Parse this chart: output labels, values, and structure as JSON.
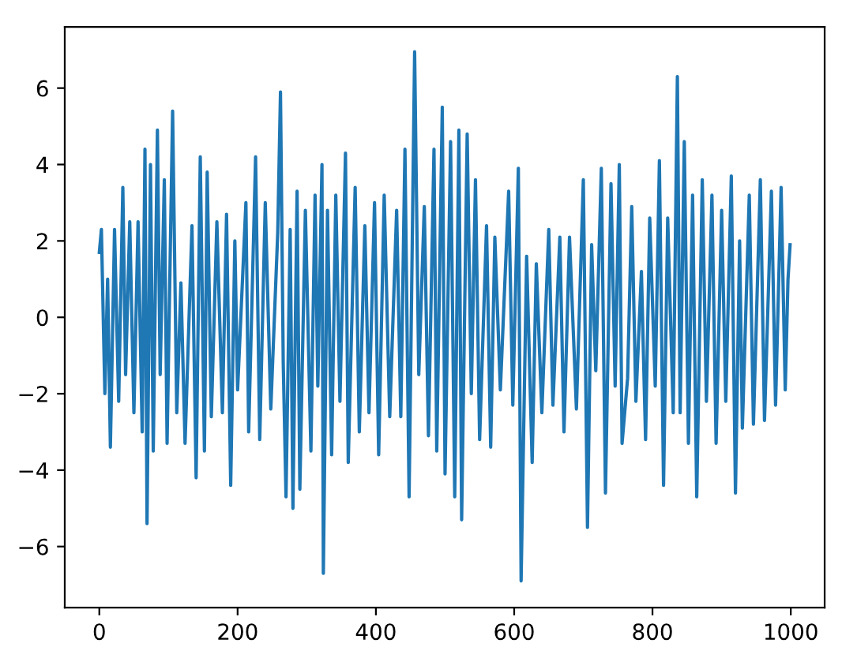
{
  "chart_data": {
    "type": "line",
    "xlim": [
      -50,
      1049
    ],
    "ylim": [
      -7.6,
      7.6
    ],
    "xticks": [
      0,
      200,
      400,
      600,
      800,
      1000
    ],
    "yticks": [
      {
        "value": -6,
        "label": "−6"
      },
      {
        "value": -4,
        "label": "−4"
      },
      {
        "value": -2,
        "label": "−2"
      },
      0,
      2,
      4,
      6
    ],
    "grid": false,
    "marker": "none",
    "line_style": "solid",
    "series": [
      {
        "color": "#1f77b4",
        "x": [
          0,
          3,
          8,
          12,
          16,
          22,
          28,
          34,
          38,
          44,
          50,
          56,
          62,
          66,
          69,
          74,
          78,
          84,
          88,
          94,
          98,
          106,
          112,
          118,
          124,
          134,
          140,
          146,
          152,
          156,
          162,
          170,
          178,
          184,
          190,
          196,
          200,
          212,
          216,
          226,
          232,
          240,
          248,
          258,
          262,
          266,
          270,
          276,
          280,
          286,
          290,
          298,
          306,
          312,
          316,
          322,
          324,
          330,
          336,
          342,
          348,
          356,
          360,
          370,
          376,
          384,
          390,
          398,
          404,
          412,
          420,
          430,
          436,
          442,
          448,
          456,
          462,
          470,
          476,
          484,
          488,
          496,
          500,
          508,
          514,
          520,
          524,
          532,
          538,
          544,
          550,
          560,
          566,
          572,
          580,
          592,
          598,
          606,
          610,
          618,
          626,
          632,
          640,
          650,
          656,
          666,
          672,
          680,
          690,
          700,
          706,
          712,
          718,
          726,
          732,
          740,
          746,
          752,
          756,
          764,
          770,
          776,
          784,
          790,
          796,
          804,
          810,
          816,
          822,
          830,
          836,
          840,
          846,
          852,
          858,
          864,
          872,
          878,
          886,
          892,
          900,
          906,
          914,
          920,
          926,
          930,
          940,
          946,
          956,
          962,
          972,
          978,
          986,
          992,
          996,
          999
        ],
        "values": [
          1.7,
          2.3,
          -2.0,
          1.0,
          -3.4,
          2.3,
          -2.2,
          3.4,
          -1.5,
          2.5,
          -2.5,
          2.5,
          -3.0,
          4.4,
          -5.4,
          4.0,
          -3.5,
          4.9,
          -1.5,
          3.6,
          -3.3,
          5.4,
          -2.5,
          0.9,
          -3.3,
          2.4,
          -4.2,
          4.2,
          -3.5,
          3.8,
          -2.6,
          2.5,
          -2.5,
          2.7,
          -4.4,
          2.0,
          -1.9,
          3.0,
          -3.0,
          4.2,
          -3.2,
          3.0,
          -2.4,
          2.2,
          5.9,
          -1.2,
          -4.7,
          2.3,
          -5.0,
          3.3,
          -4.5,
          2.8,
          -3.5,
          3.2,
          -1.8,
          4.0,
          -6.7,
          2.8,
          -3.6,
          3.2,
          -2.2,
          4.3,
          -3.8,
          3.4,
          -3.0,
          2.4,
          -2.5,
          3.0,
          -3.6,
          3.2,
          -2.6,
          2.8,
          -2.6,
          4.4,
          -4.7,
          6.95,
          -1.5,
          2.9,
          -3.1,
          4.4,
          -3.5,
          5.5,
          -4.1,
          4.6,
          -4.7,
          4.9,
          -5.3,
          4.8,
          -2.0,
          3.6,
          -3.2,
          2.4,
          -3.4,
          2.1,
          -1.9,
          3.3,
          -2.3,
          3.9,
          -6.9,
          1.6,
          -3.8,
          1.4,
          -2.5,
          2.3,
          -2.3,
          2.1,
          -3.0,
          2.1,
          -2.4,
          3.6,
          -5.5,
          1.9,
          -1.4,
          3.9,
          -4.6,
          3.5,
          -1.8,
          4.0,
          -3.3,
          -1.6,
          2.9,
          -2.2,
          1.2,
          -3.2,
          2.6,
          -1.8,
          4.1,
          -4.4,
          2.6,
          -2.5,
          6.3,
          -2.5,
          4.6,
          -3.3,
          3.2,
          -4.7,
          3.6,
          -2.2,
          3.2,
          -3.3,
          2.8,
          -2.2,
          3.7,
          -4.6,
          2.0,
          -2.9,
          3.2,
          -2.8,
          3.6,
          -2.7,
          3.3,
          -2.3,
          3.4,
          -1.9,
          1.0,
          1.9
        ]
      }
    ]
  }
}
